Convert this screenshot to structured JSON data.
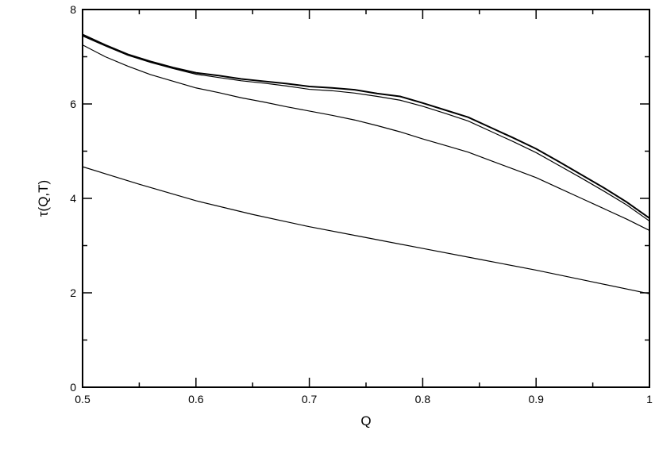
{
  "chart_data": {
    "type": "line",
    "xlabel": "Q",
    "ylabel": "τ(Q,T)",
    "xlim": [
      0.5,
      1.0
    ],
    "ylim": [
      0,
      8
    ],
    "x_ticks": [
      "0.5",
      "0.6",
      "0.7",
      "0.8",
      "0.9",
      "1"
    ],
    "y_ticks": [
      "0",
      "2",
      "4",
      "6",
      "8"
    ],
    "grid": false,
    "legend": false,
    "line_color": "#000000",
    "series": [
      {
        "x": [
          0.5,
          0.52,
          0.54,
          0.56,
          0.58,
          0.6,
          0.62,
          0.64,
          0.66,
          0.68,
          0.7,
          0.72,
          0.74,
          0.76,
          0.78,
          0.8,
          0.82,
          0.84,
          0.86,
          0.88,
          0.9,
          0.92,
          0.94,
          0.96,
          0.98,
          1.0
        ],
        "y": [
          7.47,
          7.25,
          7.05,
          6.9,
          6.77,
          6.66,
          6.6,
          6.53,
          6.48,
          6.43,
          6.37,
          6.34,
          6.3,
          6.22,
          6.16,
          6.02,
          5.87,
          5.72,
          5.5,
          5.28,
          5.05,
          4.78,
          4.5,
          4.22,
          3.92,
          3.58
        ],
        "stroke_width": 2
      },
      {
        "x": [
          0.5,
          0.52,
          0.54,
          0.56,
          0.58,
          0.6,
          0.62,
          0.64,
          0.66,
          0.68,
          0.7,
          0.72,
          0.74,
          0.76,
          0.78,
          0.8,
          0.82,
          0.84,
          0.86,
          0.88,
          0.9,
          0.92,
          0.94,
          0.96,
          0.98,
          1.0
        ],
        "y": [
          7.44,
          7.23,
          7.03,
          6.88,
          6.75,
          6.63,
          6.56,
          6.49,
          6.44,
          6.38,
          6.31,
          6.28,
          6.23,
          6.16,
          6.08,
          5.95,
          5.8,
          5.64,
          5.42,
          5.2,
          4.97,
          4.7,
          4.43,
          4.15,
          3.86,
          3.52
        ],
        "stroke_width": 1.2
      },
      {
        "x": [
          0.5,
          0.52,
          0.54,
          0.56,
          0.58,
          0.6,
          0.62,
          0.64,
          0.66,
          0.68,
          0.7,
          0.72,
          0.74,
          0.76,
          0.78,
          0.8,
          0.82,
          0.84,
          0.86,
          0.88,
          0.9,
          0.92,
          0.94,
          0.96,
          0.98,
          1.0
        ],
        "y": [
          7.25,
          7.0,
          6.8,
          6.62,
          6.48,
          6.34,
          6.24,
          6.13,
          6.04,
          5.94,
          5.85,
          5.76,
          5.66,
          5.54,
          5.41,
          5.26,
          5.12,
          4.98,
          4.8,
          4.62,
          4.44,
          4.22,
          4.0,
          3.78,
          3.56,
          3.32
        ],
        "stroke_width": 1.2
      },
      {
        "x": [
          0.5,
          0.55,
          0.6,
          0.65,
          0.7,
          0.75,
          0.8,
          0.85,
          0.9,
          0.95,
          1.0
        ],
        "y": [
          4.67,
          4.3,
          3.95,
          3.66,
          3.4,
          3.17,
          2.94,
          2.71,
          2.48,
          2.23,
          1.98
        ],
        "stroke_width": 1.2
      }
    ]
  }
}
